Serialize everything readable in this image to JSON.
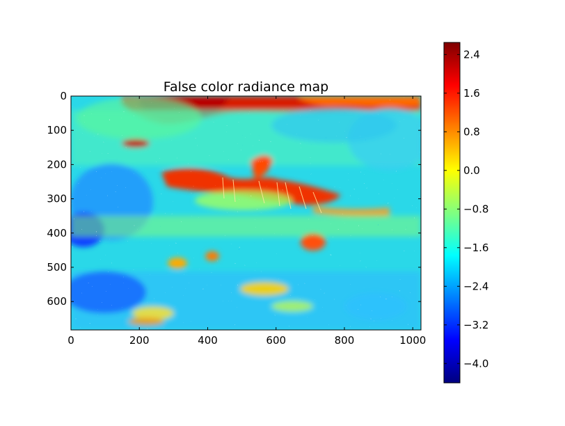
{
  "chart_data": {
    "type": "heatmap",
    "title": "False color radiance map",
    "xlabel": "",
    "ylabel": "",
    "x_ticks": [
      0,
      200,
      400,
      600,
      800,
      1000
    ],
    "y_ticks": [
      0,
      100,
      200,
      300,
      400,
      500,
      600
    ],
    "xlim": [
      0,
      1024
    ],
    "ylim": [
      683,
      0
    ],
    "colormap": "jet",
    "colorbar": {
      "ticks": [
        "2.4",
        "1.6",
        "0.8",
        "0.0",
        "−0.8",
        "−1.6",
        "−2.4",
        "−3.2",
        "−4.0"
      ],
      "tick_values": [
        2.4,
        1.6,
        0.8,
        0.0,
        -0.8,
        -1.6,
        -2.4,
        -3.2,
        -4.0
      ],
      "vmin": -4.4,
      "vmax": 2.65
    },
    "grid": false,
    "legend": "none"
  }
}
